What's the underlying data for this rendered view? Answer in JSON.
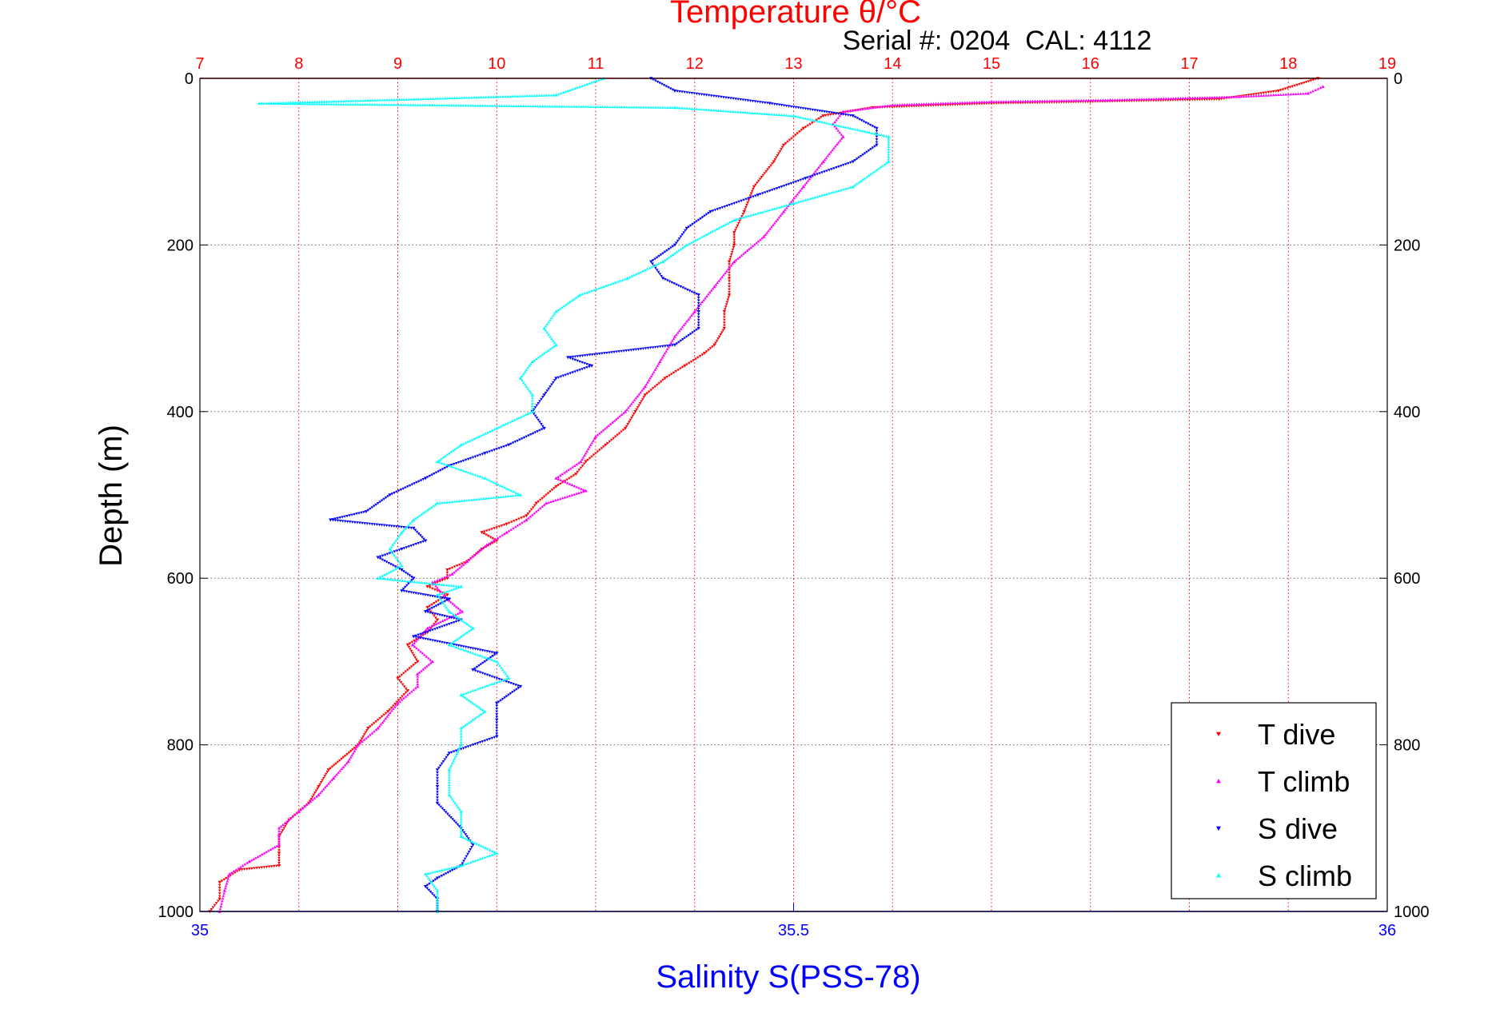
{
  "chart_data": {
    "type": "scatter",
    "title": "Temperature θ/°C",
    "subtitle": "Serial #: 0204  CAL: 4112",
    "xlabel": "Salinity S(PSS-78)",
    "ylabel": "Depth (m)",
    "x_bottom": {
      "range": [
        35,
        36
      ],
      "ticks": [
        "35",
        "35.5",
        "36"
      ],
      "color": "#0000ff"
    },
    "x_top": {
      "range": [
        7,
        19
      ],
      "ticks": [
        "7",
        "8",
        "9",
        "10",
        "11",
        "12",
        "13",
        "14",
        "15",
        "16",
        "17",
        "18",
        "19"
      ],
      "color": "#ff0000"
    },
    "y": {
      "range": [
        0,
        1000
      ],
      "reversed": true,
      "ticks": [
        "0",
        "200",
        "400",
        "600",
        "800",
        "1000"
      ]
    },
    "grid": true,
    "legend_position": "bottom-right",
    "series": [
      {
        "name": "T dive",
        "axis": "top",
        "color": "#ff0000",
        "marker": "triangle-down",
        "points": [
          [
            18.3,
            0
          ],
          [
            17.9,
            15
          ],
          [
            17.3,
            25
          ],
          [
            16.0,
            28
          ],
          [
            15.0,
            30
          ],
          [
            13.8,
            35
          ],
          [
            13.3,
            45
          ],
          [
            13.1,
            60
          ],
          [
            12.9,
            80
          ],
          [
            12.8,
            100
          ],
          [
            12.6,
            130
          ],
          [
            12.5,
            160
          ],
          [
            12.4,
            185
          ],
          [
            12.4,
            200
          ],
          [
            12.35,
            220
          ],
          [
            12.35,
            240
          ],
          [
            12.35,
            260
          ],
          [
            12.3,
            280
          ],
          [
            12.3,
            300
          ],
          [
            12.2,
            320
          ],
          [
            12.1,
            330
          ],
          [
            11.9,
            345
          ],
          [
            11.7,
            360
          ],
          [
            11.5,
            380
          ],
          [
            11.4,
            400
          ],
          [
            11.3,
            420
          ],
          [
            11.1,
            440
          ],
          [
            10.9,
            460
          ],
          [
            10.8,
            475
          ],
          [
            10.6,
            490
          ],
          [
            10.4,
            510
          ],
          [
            10.3,
            525
          ],
          [
            10.1,
            535
          ],
          [
            9.85,
            545
          ],
          [
            10.0,
            555
          ],
          [
            9.85,
            565
          ],
          [
            9.7,
            580
          ],
          [
            9.5,
            590
          ],
          [
            9.5,
            600
          ],
          [
            9.3,
            610
          ],
          [
            9.5,
            620
          ],
          [
            9.3,
            635
          ],
          [
            9.4,
            650
          ],
          [
            9.3,
            665
          ],
          [
            9.1,
            680
          ],
          [
            9.2,
            700
          ],
          [
            9.0,
            720
          ],
          [
            9.1,
            735
          ],
          [
            8.9,
            760
          ],
          [
            8.7,
            780
          ],
          [
            8.6,
            800
          ],
          [
            8.3,
            830
          ],
          [
            8.2,
            850
          ],
          [
            8.1,
            870
          ],
          [
            7.9,
            890
          ],
          [
            7.8,
            910
          ],
          [
            7.8,
            930
          ],
          [
            7.8,
            945
          ],
          [
            7.4,
            950
          ],
          [
            7.2,
            965
          ],
          [
            7.2,
            985
          ],
          [
            7.1,
            1000
          ]
        ]
      },
      {
        "name": "T climb",
        "axis": "top",
        "color": "#ff00ff",
        "marker": "triangle-up",
        "points": [
          [
            18.35,
            10
          ],
          [
            18.2,
            18
          ],
          [
            17.5,
            22
          ],
          [
            16.2,
            26
          ],
          [
            15.0,
            28
          ],
          [
            14.0,
            32
          ],
          [
            13.5,
            40
          ],
          [
            13.4,
            55
          ],
          [
            13.5,
            70
          ],
          [
            13.3,
            100
          ],
          [
            13.1,
            130
          ],
          [
            12.9,
            160
          ],
          [
            12.7,
            190
          ],
          [
            12.4,
            220
          ],
          [
            12.2,
            250
          ],
          [
            12.0,
            280
          ],
          [
            11.8,
            310
          ],
          [
            11.65,
            340
          ],
          [
            11.5,
            370
          ],
          [
            11.3,
            400
          ],
          [
            11.0,
            430
          ],
          [
            10.85,
            460
          ],
          [
            10.6,
            480
          ],
          [
            10.9,
            495
          ],
          [
            10.5,
            510
          ],
          [
            10.3,
            530
          ],
          [
            10.1,
            545
          ],
          [
            9.9,
            560
          ],
          [
            9.7,
            580
          ],
          [
            9.55,
            595
          ],
          [
            9.35,
            605
          ],
          [
            9.5,
            625
          ],
          [
            9.65,
            640
          ],
          [
            9.3,
            660
          ],
          [
            9.15,
            680
          ],
          [
            9.35,
            700
          ],
          [
            9.2,
            715
          ],
          [
            9.2,
            730
          ],
          [
            9.0,
            750
          ],
          [
            8.8,
            780
          ],
          [
            8.6,
            800
          ],
          [
            8.5,
            820
          ],
          [
            8.35,
            840
          ],
          [
            8.2,
            860
          ],
          [
            8.0,
            880
          ],
          [
            7.8,
            900
          ],
          [
            7.8,
            920
          ],
          [
            7.5,
            940
          ],
          [
            7.3,
            955
          ],
          [
            7.25,
            975
          ],
          [
            7.2,
            1000
          ]
        ]
      },
      {
        "name": "S dive",
        "axis": "bottom",
        "color": "#0000ff",
        "marker": "triangle-down",
        "points": [
          [
            35.38,
            0
          ],
          [
            35.4,
            15
          ],
          [
            35.48,
            30
          ],
          [
            35.55,
            45
          ],
          [
            35.57,
            60
          ],
          [
            35.57,
            80
          ],
          [
            35.55,
            100
          ],
          [
            35.51,
            120
          ],
          [
            35.47,
            140
          ],
          [
            35.43,
            160
          ],
          [
            35.41,
            180
          ],
          [
            35.4,
            200
          ],
          [
            35.38,
            220
          ],
          [
            35.39,
            240
          ],
          [
            35.42,
            260
          ],
          [
            35.42,
            280
          ],
          [
            35.42,
            300
          ],
          [
            35.4,
            320
          ],
          [
            35.31,
            335
          ],
          [
            35.33,
            345
          ],
          [
            35.3,
            360
          ],
          [
            35.29,
            380
          ],
          [
            35.28,
            400
          ],
          [
            35.29,
            420
          ],
          [
            35.26,
            440
          ],
          [
            35.24,
            450
          ],
          [
            35.21,
            465
          ],
          [
            35.19,
            480
          ],
          [
            35.16,
            500
          ],
          [
            35.14,
            520
          ],
          [
            35.11,
            530
          ],
          [
            35.18,
            540
          ],
          [
            35.19,
            555
          ],
          [
            35.17,
            565
          ],
          [
            35.15,
            575
          ],
          [
            35.17,
            590
          ],
          [
            35.18,
            600
          ],
          [
            35.17,
            615
          ],
          [
            35.21,
            625
          ],
          [
            35.19,
            640
          ],
          [
            35.22,
            650
          ],
          [
            35.18,
            670
          ],
          [
            35.25,
            690
          ],
          [
            35.23,
            710
          ],
          [
            35.27,
            730
          ],
          [
            35.25,
            750
          ],
          [
            35.25,
            770
          ],
          [
            35.25,
            790
          ],
          [
            35.21,
            810
          ],
          [
            35.2,
            830
          ],
          [
            35.2,
            850
          ],
          [
            35.2,
            870
          ],
          [
            35.22,
            900
          ],
          [
            35.23,
            920
          ],
          [
            35.22,
            945
          ],
          [
            35.2,
            960
          ],
          [
            35.19,
            970
          ],
          [
            35.2,
            985
          ],
          [
            35.2,
            1000
          ]
        ]
      },
      {
        "name": "S climb",
        "axis": "bottom",
        "color": "#00ffff",
        "marker": "triangle-up",
        "points": [
          [
            35.34,
            0
          ],
          [
            35.3,
            20
          ],
          [
            35.18,
            25
          ],
          [
            35.05,
            30
          ],
          [
            35.4,
            35
          ],
          [
            35.5,
            45
          ],
          [
            35.58,
            70
          ],
          [
            35.58,
            100
          ],
          [
            35.55,
            130
          ],
          [
            35.5,
            150
          ],
          [
            35.45,
            170
          ],
          [
            35.41,
            200
          ],
          [
            35.39,
            220
          ],
          [
            35.36,
            240
          ],
          [
            35.32,
            260
          ],
          [
            35.3,
            280
          ],
          [
            35.29,
            300
          ],
          [
            35.3,
            320
          ],
          [
            35.28,
            340
          ],
          [
            35.27,
            360
          ],
          [
            35.28,
            380
          ],
          [
            35.28,
            400
          ],
          [
            35.25,
            420
          ],
          [
            35.22,
            440
          ],
          [
            35.2,
            460
          ],
          [
            35.24,
            480
          ],
          [
            35.27,
            500
          ],
          [
            35.2,
            510
          ],
          [
            35.18,
            530
          ],
          [
            35.17,
            545
          ],
          [
            35.16,
            565
          ],
          [
            35.17,
            585
          ],
          [
            35.15,
            600
          ],
          [
            35.22,
            610
          ],
          [
            35.2,
            620
          ],
          [
            35.21,
            640
          ],
          [
            35.23,
            660
          ],
          [
            35.21,
            680
          ],
          [
            35.25,
            700
          ],
          [
            35.26,
            720
          ],
          [
            35.22,
            740
          ],
          [
            35.24,
            760
          ],
          [
            35.22,
            780
          ],
          [
            35.22,
            800
          ],
          [
            35.21,
            830
          ],
          [
            35.21,
            860
          ],
          [
            35.22,
            880
          ],
          [
            35.22,
            910
          ],
          [
            35.25,
            930
          ],
          [
            35.22,
            945
          ],
          [
            35.19,
            955
          ],
          [
            35.2,
            975
          ],
          [
            35.2,
            1000
          ]
        ]
      }
    ]
  }
}
